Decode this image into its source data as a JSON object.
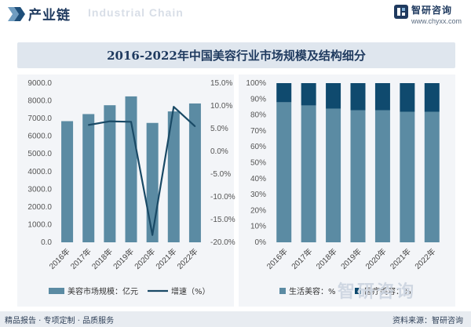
{
  "header": {
    "section_label": "产业链",
    "watermark": "Industrial Chain",
    "brand_name": "智研咨询",
    "brand_url": "www.chyxx.com"
  },
  "title": "2016-2022年中国美容行业市场规模及结构细分",
  "chart_data": [
    {
      "type": "bar",
      "categories": [
        "2016年",
        "2017年",
        "2018年",
        "2019年",
        "2020年",
        "2021年",
        "2022年"
      ],
      "series": [
        {
          "name": "美容市场规模：亿元",
          "type": "bar",
          "axis": "left",
          "color": "#5b8ba3",
          "values": [
            6850,
            7250,
            7750,
            8250,
            6750,
            7400,
            7850
          ]
        },
        {
          "name": "增速（%）",
          "type": "line",
          "axis": "right",
          "color": "#1a4a66",
          "values": [
            null,
            5.8,
            6.6,
            6.5,
            -18.4,
            9.8,
            5.5
          ]
        }
      ],
      "y_left": {
        "min": 0,
        "max": 9000,
        "step": 1000,
        "ticks": [
          "0.0",
          "1000.0",
          "2000.0",
          "3000.0",
          "4000.0",
          "5000.0",
          "6000.0",
          "7000.0",
          "8000.0",
          "9000.0"
        ]
      },
      "y_right": {
        "min": -20,
        "max": 15,
        "step": 5,
        "ticks": [
          "-20.0%",
          "-15.0%",
          "-10.0%",
          "-5.0%",
          "0.0%",
          "5.0%",
          "10.0%",
          "15.0%"
        ]
      },
      "legend": {
        "position": "bottom"
      }
    },
    {
      "type": "bar",
      "stacked": true,
      "categories": [
        "2016年",
        "2017年",
        "2018年",
        "2019年",
        "2020年",
        "2021年",
        "2022年"
      ],
      "series": [
        {
          "name": "生活美容：%",
          "color": "#5b8ba3",
          "values": [
            88,
            86,
            84,
            83,
            83,
            82,
            82
          ]
        },
        {
          "name": "医疗美容：%",
          "color": "#0f4a6e",
          "values": [
            12,
            14,
            16,
            17,
            17,
            18,
            18
          ]
        }
      ],
      "y": {
        "min": 0,
        "max": 100,
        "step": 10,
        "ticks": [
          "0%",
          "10%",
          "20%",
          "30%",
          "40%",
          "50%",
          "60%",
          "70%",
          "80%",
          "90%",
          "100%"
        ]
      },
      "legend": {
        "position": "bottom"
      }
    }
  ],
  "watermark_bottom": "智研咨询",
  "footer": {
    "left": "精品报告 · 专项定制 · 品质服务",
    "right": "资料来源：智研咨询"
  }
}
